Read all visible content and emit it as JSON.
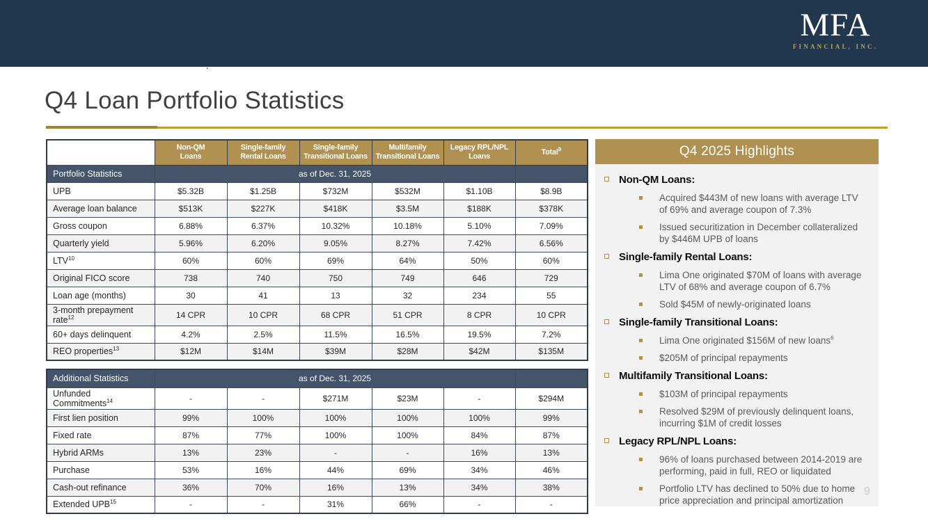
{
  "slide": {
    "title": "Q4 Loan Portfolio Statistics",
    "page_number": "9",
    "stray_mark": "."
  },
  "logo": {
    "name": "MFA",
    "subtitle": "FINANCIAL, INC."
  },
  "colors": {
    "banner_navy": "#21374D",
    "gold": "#B09150",
    "slate_band": "#44546A",
    "rule_gold_dark": "#A2872A",
    "rule_gold": "#BF9F26",
    "panel_bg": "#F2F2F2",
    "logo_gold": "#C9A23F",
    "row_alt": "#F2F2F2"
  },
  "columns": [
    {
      "label": "Non-QM\nLoans",
      "sup": ""
    },
    {
      "label": "Single-family\nRental Loans",
      "sup": ""
    },
    {
      "label": "Single-family\nTransitional Loans",
      "sup": ""
    },
    {
      "label": "Multifamily\nTransitional Loans",
      "sup": ""
    },
    {
      "label": "Legacy RPL/NPL\nLoans",
      "sup": ""
    },
    {
      "label": "Total",
      "sup": "9"
    }
  ],
  "portfolio_table": {
    "section_label": "Portfolio Statistics",
    "as_of": "as of Dec. 31, 2025",
    "rows": [
      {
        "label": "UPB",
        "sup": "",
        "values": [
          "$5.32B",
          "$1.25B",
          "$732M",
          "$532M",
          "$1.10B",
          "$8.9B"
        ]
      },
      {
        "label": "Average loan balance",
        "sup": "",
        "values": [
          "$513K",
          "$227K",
          "$418K",
          "$3.5M",
          "$188K",
          "$378K"
        ]
      },
      {
        "label": "Gross coupon",
        "sup": "",
        "values": [
          "6.88%",
          "6.37%",
          "10.32%",
          "10.18%",
          "5.10%",
          "7.09%"
        ]
      },
      {
        "label": "Quarterly yield",
        "sup": "",
        "values": [
          "5.96%",
          "6.20%",
          "9.05%",
          "8.27%",
          "7.42%",
          "6.56%"
        ]
      },
      {
        "label": "LTV",
        "sup": "10",
        "values": [
          "60%",
          "60%",
          "69%",
          "64%",
          "50%",
          "60%"
        ]
      },
      {
        "label": "Original FICO score",
        "sup": "",
        "values": [
          "738",
          "740",
          "750",
          "749",
          "646",
          "729"
        ]
      },
      {
        "label": "Loan age (months)",
        "sup": "",
        "values": [
          "30",
          "41",
          "13",
          "32",
          "234",
          "55"
        ]
      },
      {
        "label": "3-month prepayment rate",
        "sup": "12",
        "values": [
          "14 CPR",
          "10 CPR",
          "68 CPR",
          "51 CPR",
          "8 CPR",
          "10 CPR"
        ]
      },
      {
        "label": "60+ days delinquent",
        "sup": "",
        "values": [
          "4.2%",
          "2.5%",
          "11.5%",
          "16.5%",
          "19.5%",
          "7.2%"
        ]
      },
      {
        "label": "REO properties",
        "sup": "13",
        "values": [
          "$12M",
          "$14M",
          "$39M",
          "$28M",
          "$42M",
          "$135M"
        ]
      }
    ]
  },
  "additional_table": {
    "section_label": "Additional Statistics",
    "as_of": "as of Dec. 31, 2025",
    "rows": [
      {
        "label": "Unfunded Commitments",
        "sup": "14",
        "values": [
          "-",
          "-",
          "$271M",
          "$23M",
          "-",
          "$294M"
        ]
      },
      {
        "label": "First lien position",
        "sup": "",
        "values": [
          "99%",
          "100%",
          "100%",
          "100%",
          "100%",
          "99%"
        ]
      },
      {
        "label": "Fixed rate",
        "sup": "",
        "values": [
          "87%",
          "77%",
          "100%",
          "100%",
          "84%",
          "87%"
        ]
      },
      {
        "label": "Hybrid ARMs",
        "sup": "",
        "values": [
          "13%",
          "23%",
          "-",
          "-",
          "16%",
          "13%"
        ]
      },
      {
        "label": "Purchase",
        "sup": "",
        "values": [
          "53%",
          "16%",
          "44%",
          "69%",
          "34%",
          "46%"
        ]
      },
      {
        "label": "Cash-out refinance",
        "sup": "",
        "values": [
          "36%",
          "70%",
          "16%",
          "13%",
          "34%",
          "38%"
        ]
      },
      {
        "label": "Extended UPB",
        "sup": "15",
        "values": [
          "-",
          "-",
          "31%",
          "66%",
          "-",
          "-"
        ]
      }
    ]
  },
  "highlights": {
    "title": "Q4 2025 Highlights",
    "items": [
      {
        "heading": "Non-QM Loans:",
        "bullets": [
          {
            "text": "Acquired $443M of new loans with average LTV of 69% and average coupon of 7.3%",
            "sup": ""
          },
          {
            "text": "Issued securitization in December collateralized by $446M UPB of loans",
            "sup": ""
          }
        ]
      },
      {
        "heading": "Single-family Rental Loans:",
        "bullets": [
          {
            "text": "Lima One originated $70M of loans with average LTV of 68% and average coupon of 6.7%",
            "sup": ""
          },
          {
            "text": "Sold $45M of newly-originated loans",
            "sup": ""
          }
        ]
      },
      {
        "heading": "Single-family Transitional Loans:",
        "bullets": [
          {
            "text": "Lima One originated $156M of new loans",
            "sup": "6"
          },
          {
            "text": "$205M of principal repayments",
            "sup": ""
          }
        ]
      },
      {
        "heading": "Multifamily Transitional Loans:",
        "bullets": [
          {
            "text": "$103M of principal repayments",
            "sup": ""
          },
          {
            "text": "Resolved $29M of previously delinquent loans, incurring $1M of credit losses",
            "sup": ""
          }
        ]
      },
      {
        "heading": "Legacy RPL/NPL Loans:",
        "bullets": [
          {
            "text": "96% of loans purchased between 2014-2019 are performing, paid in full, REO or liquidated",
            "sup": ""
          },
          {
            "text": "Portfolio LTV has declined to 50% due to home price appreciation and principal amortization",
            "sup": ""
          }
        ]
      }
    ]
  }
}
